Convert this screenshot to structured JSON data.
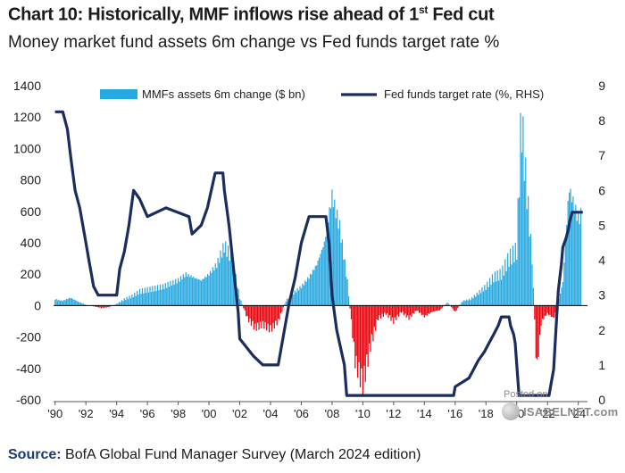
{
  "title_main": "Chart 10: Historically, MMF inflows rise ahead of 1",
  "title_sup": "st",
  "title_end": " Fed cut",
  "subtitle": "Money market fund assets 6m change vs Fed funds target rate %",
  "source_label": "Source:",
  "source_text": " BofA Global Fund Manager Survey (March 2024 edition)",
  "watermark_line1": "Posted on",
  "watermark_line2": "ISABELNET.com",
  "colors": {
    "bars": "#28a8e0",
    "negative_bars": "#e8000b",
    "line": "#1b2d5f",
    "axis": "#000000"
  },
  "chart_data": {
    "type": "bar+line",
    "title": "Chart 10: Historically, MMF inflows rise ahead of 1st Fed cut",
    "subtitle": "Money market fund assets 6m change vs Fed funds target rate %",
    "x_ticks": [
      "'90",
      "'92",
      "'94",
      "'96",
      "'98",
      "'00",
      "'02",
      "'04",
      "'06",
      "'08",
      "'10",
      "'12",
      "'14",
      "'16",
      "'18",
      "'20",
      "'22",
      "'24"
    ],
    "x_tick_years": [
      1990,
      1992,
      1994,
      1996,
      1998,
      2000,
      2002,
      2004,
      2006,
      2008,
      2010,
      2012,
      2014,
      2016,
      2018,
      2020,
      2022,
      2024
    ],
    "xlim": [
      1989.9,
      2024.6
    ],
    "y_left": {
      "label": "MMFs assets 6m change ($ bn)",
      "lim": [
        -600,
        1400
      ],
      "ticks": [
        -600,
        -400,
        -200,
        0,
        200,
        400,
        600,
        800,
        1000,
        1200,
        1400
      ]
    },
    "y_right": {
      "label": "Fed funds target rate (%, RHS)",
      "lim": [
        0,
        9
      ],
      "ticks": [
        0,
        1,
        2,
        3,
        4,
        5,
        6,
        7,
        8,
        9
      ]
    },
    "legend": [
      "MMFs assets 6m change ($ bn)",
      "Fed funds target rate (%, RHS)"
    ],
    "series": [
      {
        "name": "MMFs assets 6m change ($ bn)",
        "type": "bar",
        "points": [
          [
            1990.0,
            40
          ],
          [
            1990.5,
            30
          ],
          [
            1991.0,
            50
          ],
          [
            1991.5,
            25
          ],
          [
            1992.0,
            5
          ],
          [
            1992.5,
            -5
          ],
          [
            1993.0,
            -15
          ],
          [
            1993.5,
            -10
          ],
          [
            1994.0,
            10
          ],
          [
            1994.5,
            40
          ],
          [
            1995.0,
            60
          ],
          [
            1995.5,
            90
          ],
          [
            1996.0,
            100
          ],
          [
            1996.5,
            110
          ],
          [
            1997.0,
            120
          ],
          [
            1997.5,
            140
          ],
          [
            1998.0,
            160
          ],
          [
            1998.5,
            200
          ],
          [
            1999.0,
            180
          ],
          [
            1999.5,
            160
          ],
          [
            2000.0,
            200
          ],
          [
            2000.5,
            260
          ],
          [
            2001.0,
            380
          ],
          [
            2001.5,
            300
          ],
          [
            2002.0,
            50
          ],
          [
            2002.5,
            -80
          ],
          [
            2003.0,
            -140
          ],
          [
            2003.5,
            -120
          ],
          [
            2004.0,
            -150
          ],
          [
            2004.5,
            -100
          ],
          [
            2005.0,
            30
          ],
          [
            2005.5,
            80
          ],
          [
            2006.0,
            120
          ],
          [
            2006.5,
            180
          ],
          [
            2007.0,
            260
          ],
          [
            2007.5,
            400
          ],
          [
            2008.0,
            700
          ],
          [
            2008.5,
            500
          ],
          [
            2009.0,
            150
          ],
          [
            2009.5,
            -350
          ],
          [
            2010.0,
            -500
          ],
          [
            2010.5,
            -250
          ],
          [
            2011.0,
            -80
          ],
          [
            2011.5,
            -50
          ],
          [
            2012.0,
            -100
          ],
          [
            2012.5,
            -40
          ],
          [
            2013.0,
            -80
          ],
          [
            2013.5,
            -30
          ],
          [
            2014.0,
            -70
          ],
          [
            2014.5,
            -40
          ],
          [
            2015.0,
            -30
          ],
          [
            2015.5,
            20
          ],
          [
            2016.0,
            -40
          ],
          [
            2016.5,
            30
          ],
          [
            2017.0,
            40
          ],
          [
            2017.5,
            80
          ],
          [
            2018.0,
            120
          ],
          [
            2018.5,
            180
          ],
          [
            2019.0,
            200
          ],
          [
            2019.5,
            300
          ],
          [
            2020.0,
            350
          ],
          [
            2020.3,
            1200
          ],
          [
            2020.6,
            800
          ],
          [
            2021.0,
            300
          ],
          [
            2021.3,
            -420
          ],
          [
            2021.6,
            -100
          ],
          [
            2022.0,
            -50
          ],
          [
            2022.4,
            -80
          ],
          [
            2022.7,
            20
          ],
          [
            2023.0,
            150
          ],
          [
            2023.4,
            750
          ],
          [
            2023.7,
            650
          ],
          [
            2024.0,
            550
          ],
          [
            2024.2,
            580
          ]
        ]
      },
      {
        "name": "Fed funds target rate (%, RHS)",
        "type": "line",
        "points": [
          [
            1990.0,
            8.25
          ],
          [
            1990.5,
            8.25
          ],
          [
            1990.8,
            7.75
          ],
          [
            1991.0,
            7.0
          ],
          [
            1991.3,
            6.0
          ],
          [
            1991.6,
            5.5
          ],
          [
            1991.9,
            4.75
          ],
          [
            1992.2,
            4.0
          ],
          [
            1992.5,
            3.25
          ],
          [
            1992.8,
            3.0
          ],
          [
            1994.0,
            3.0
          ],
          [
            1994.2,
            3.75
          ],
          [
            1994.5,
            4.25
          ],
          [
            1994.8,
            5.0
          ],
          [
            1995.1,
            6.0
          ],
          [
            1995.5,
            5.75
          ],
          [
            1996.0,
            5.25
          ],
          [
            1997.2,
            5.5
          ],
          [
            1998.7,
            5.25
          ],
          [
            1998.9,
            4.75
          ],
          [
            1999.5,
            5.0
          ],
          [
            1999.9,
            5.5
          ],
          [
            2000.4,
            6.5
          ],
          [
            2000.9,
            6.5
          ],
          [
            2001.0,
            6.0
          ],
          [
            2001.3,
            5.0
          ],
          [
            2001.6,
            3.75
          ],
          [
            2001.9,
            2.5
          ],
          [
            2002.0,
            1.75
          ],
          [
            2002.9,
            1.25
          ],
          [
            2003.5,
            1.0
          ],
          [
            2004.5,
            1.0
          ],
          [
            2004.8,
            1.75
          ],
          [
            2005.2,
            2.75
          ],
          [
            2005.6,
            3.5
          ],
          [
            2006.0,
            4.5
          ],
          [
            2006.5,
            5.25
          ],
          [
            2007.6,
            5.25
          ],
          [
            2007.8,
            4.5
          ],
          [
            2008.0,
            3.0
          ],
          [
            2008.3,
            2.0
          ],
          [
            2008.8,
            1.0
          ],
          [
            2008.95,
            0.125
          ],
          [
            2015.9,
            0.125
          ],
          [
            2016.0,
            0.375
          ],
          [
            2016.9,
            0.625
          ],
          [
            2017.2,
            0.875
          ],
          [
            2017.5,
            1.125
          ],
          [
            2017.9,
            1.375
          ],
          [
            2018.2,
            1.625
          ],
          [
            2018.5,
            1.875
          ],
          [
            2018.8,
            2.125
          ],
          [
            2019.0,
            2.375
          ],
          [
            2019.5,
            2.375
          ],
          [
            2019.6,
            2.125
          ],
          [
            2019.8,
            1.875
          ],
          [
            2019.9,
            1.625
          ],
          [
            2020.15,
            0.125
          ],
          [
            2022.1,
            0.125
          ],
          [
            2022.2,
            0.375
          ],
          [
            2022.4,
            0.875
          ],
          [
            2022.5,
            1.625
          ],
          [
            2022.6,
            2.375
          ],
          [
            2022.7,
            3.125
          ],
          [
            2022.9,
            3.875
          ],
          [
            2023.0,
            4.375
          ],
          [
            2023.2,
            4.625
          ],
          [
            2023.35,
            4.875
          ],
          [
            2023.45,
            5.125
          ],
          [
            2023.6,
            5.375
          ],
          [
            2024.3,
            5.375
          ]
        ]
      }
    ]
  }
}
